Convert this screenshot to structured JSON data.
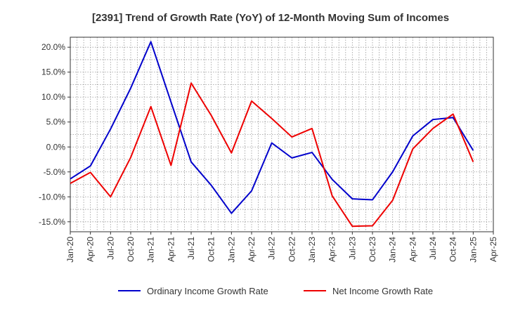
{
  "chart_data": {
    "type": "line",
    "title": "[2391]  Trend of Growth Rate (YoY) of 12-Month Moving Sum of Incomes",
    "xlabel": "",
    "ylabel": "",
    "x": [
      "Jan-20",
      "Apr-20",
      "Jul-20",
      "Oct-20",
      "Jan-21",
      "Apr-21",
      "Jul-21",
      "Oct-21",
      "Jan-22",
      "Apr-22",
      "Jul-22",
      "Oct-22",
      "Jan-23",
      "Apr-23",
      "Jul-23",
      "Oct-23",
      "Jan-24",
      "Apr-24",
      "Jul-24",
      "Oct-24",
      "Jan-25",
      "Apr-25"
    ],
    "ylim": [
      -17,
      22
    ],
    "yticks": [
      20,
      15,
      10,
      5,
      0,
      -5,
      -10,
      -15
    ],
    "ytick_labels": [
      "20.0%",
      "15.0%",
      "10.0%",
      "5.0%",
      "0.0%",
      "-5.0%",
      "-10.0%",
      "-15.0%"
    ],
    "grid": true,
    "legend_position": "bottom",
    "series": [
      {
        "name": "Ordinary Income Growth Rate",
        "color": "#0000cc",
        "values": [
          -6.4,
          -3.8,
          3.6,
          11.8,
          21.1,
          9.0,
          -3.0,
          -7.7,
          -13.3,
          -8.8,
          0.8,
          -2.2,
          -1.1,
          -6.5,
          -10.4,
          -10.6,
          -5.0,
          2.2,
          5.5,
          5.9,
          -0.7,
          null
        ]
      },
      {
        "name": "Net Income Growth Rate",
        "color": "#ee0000",
        "values": [
          -7.3,
          -5.1,
          -10.0,
          -2.1,
          8.1,
          -3.7,
          12.8,
          6.3,
          -1.2,
          9.2,
          5.7,
          2.0,
          3.7,
          -9.8,
          -15.9,
          -15.8,
          -10.7,
          -0.4,
          3.7,
          6.6,
          -3.0,
          null
        ]
      }
    ]
  }
}
